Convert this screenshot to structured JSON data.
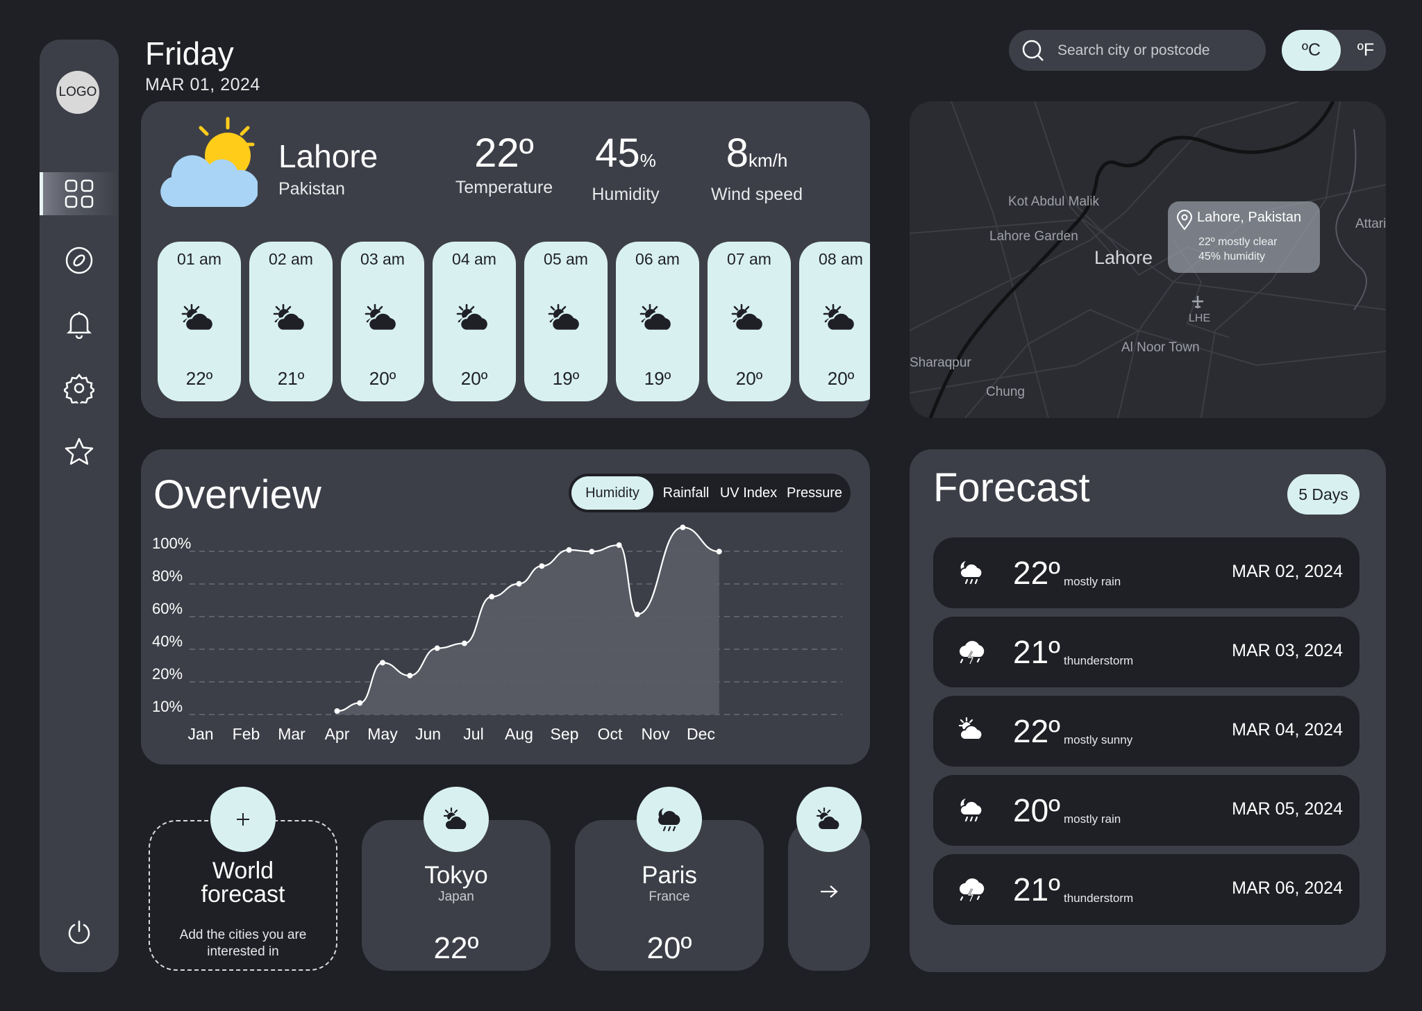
{
  "app": {
    "logo_text": "LOGO"
  },
  "header": {
    "day": "Friday",
    "date": "MAR 01, 2024",
    "search_placeholder": "Search city or postcode",
    "unit_c": "ºC",
    "unit_f": "ºF"
  },
  "sidebar": {
    "items": [
      "dashboard",
      "explore",
      "notifications",
      "settings",
      "favorites"
    ],
    "power": "power"
  },
  "current": {
    "city": "Lahore",
    "country": "Pakistan",
    "temperature": {
      "value": "22º",
      "label": "Temperature"
    },
    "humidity": {
      "value": "45",
      "unit": "%",
      "label": "Humidity"
    },
    "wind": {
      "value": "8",
      "unit": "km/h",
      "label": "Wind speed"
    },
    "hourly": [
      {
        "time": "01 am",
        "temp": "22º"
      },
      {
        "time": "02 am",
        "temp": "21º"
      },
      {
        "time": "03 am",
        "temp": "20º"
      },
      {
        "time": "04 am",
        "temp": "20º"
      },
      {
        "time": "05 am",
        "temp": "19º"
      },
      {
        "time": "06 am",
        "temp": "19º"
      },
      {
        "time": "07 am",
        "temp": "20º"
      },
      {
        "time": "08 am",
        "temp": "20º"
      }
    ]
  },
  "map": {
    "labels": [
      "Kot Abdul Malik",
      "Lahore Garden",
      "Al Noor Town",
      "Sharaqpur",
      "Chung",
      "Attari",
      "LHE"
    ],
    "city": "Lahore",
    "tooltip": {
      "title": "Lahore, Pakistan",
      "line1": "22º mostly clear",
      "line2": "45% humidity"
    }
  },
  "overview": {
    "title": "Overview",
    "tabs": [
      "Humidity",
      "Rainfall",
      "UV Index",
      "Pressure"
    ],
    "active_tab": "Humidity"
  },
  "chart_data": {
    "type": "area",
    "title": "",
    "xlabel": "",
    "ylabel": "",
    "categories": [
      "Jan",
      "Feb",
      "Mar",
      "Apr",
      "May",
      "Jun",
      "Jul",
      "Aug",
      "Sep",
      "Oct",
      "Nov",
      "Dec"
    ],
    "yticks": [
      "100%",
      "80%",
      "60%",
      "40%",
      "20%",
      "10%"
    ],
    "ylim": [
      0,
      100
    ],
    "grid": true,
    "series": [
      {
        "x": [
          3.0,
          3.5,
          4.0,
          4.6,
          5.2,
          5.8,
          6.4,
          7.0,
          7.5,
          8.1,
          8.6,
          9.2,
          9.6,
          10.6,
          11.4,
          11.4
        ],
        "values": [
          0,
          5,
          30,
          22,
          39,
          42,
          71,
          79,
          90,
          100,
          99,
          103,
          60,
          114,
          99,
          99
        ]
      }
    ]
  },
  "world": {
    "title_line1": "World",
    "title_line2": "forecast",
    "desc": "Add the cities you are interested in",
    "cities": [
      {
        "name": "Tokyo",
        "country": "Japan",
        "temp": "22º"
      },
      {
        "name": "Paris",
        "country": "France",
        "temp": "20º"
      }
    ],
    "next": "→"
  },
  "forecast": {
    "title": "Forecast",
    "range": "5 Days",
    "days": [
      {
        "temp": "22º",
        "desc": "mostly rain",
        "date": "MAR 02, 2024",
        "icon": "cloud-rain-moon-icon"
      },
      {
        "temp": "21º",
        "desc": "thunderstorm",
        "date": "MAR 03, 2024",
        "icon": "cloud-storm-icon"
      },
      {
        "temp": "22º",
        "desc": "mostly sunny",
        "date": "MAR 04, 2024",
        "icon": "partly-sunny-icon"
      },
      {
        "temp": "20º",
        "desc": "mostly rain",
        "date": "MAR 05, 2024",
        "icon": "cloud-rain-moon-icon"
      },
      {
        "temp": "21º",
        "desc": "thunderstorm",
        "date": "MAR 06, 2024",
        "icon": "cloud-storm-icon"
      }
    ]
  },
  "colors": {
    "background": "#1f2025",
    "panel": "#3d3f48",
    "accent": "#d8f1f0",
    "sun": "#ffcc1a",
    "cloud": "#a9d4f5"
  }
}
